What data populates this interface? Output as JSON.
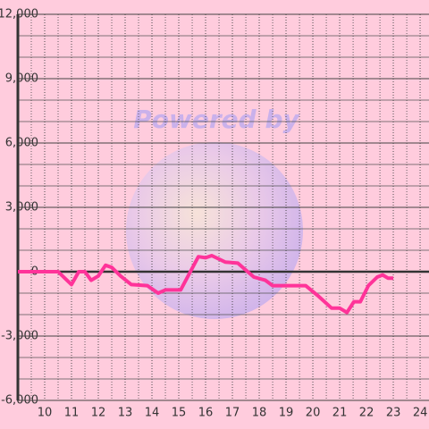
{
  "chart_data": {
    "type": "line",
    "watermark": "Powered by",
    "x": [
      9,
      10.5,
      10.83,
      11,
      11.27,
      11.5,
      11.73,
      12,
      12.27,
      12.5,
      12.83,
      13.23,
      13.83,
      14.23,
      14.5,
      15.07,
      15.73,
      16,
      16.23,
      16.73,
      17.2,
      17.8,
      18.23,
      18.5,
      19.73,
      20.17,
      20.7,
      21,
      21.27,
      21.53,
      21.77,
      22.07,
      22.4,
      22.6,
      22.8,
      23
    ],
    "series": [
      {
        "color": "#ff3399",
        "values": [
          0,
          0,
          -400,
          -600,
          0,
          0,
          -400,
          -200,
          300,
          200,
          -200,
          -600,
          -650,
          -1000,
          -850,
          -850,
          700,
          650,
          750,
          450,
          400,
          -250,
          -400,
          -650,
          -650,
          -1100,
          -1700,
          -1700,
          -1900,
          -1400,
          -1400,
          -650,
          -250,
          -150,
          -300,
          -300
        ]
      }
    ],
    "xlim": [
      9,
      24.33
    ],
    "xticks": [
      10,
      11,
      12,
      13,
      14,
      15,
      16,
      17,
      18,
      19,
      20,
      21,
      22,
      23,
      24
    ],
    "ylim": [
      -6000,
      12000
    ],
    "yticks": [
      {
        "value": 12000,
        "label": "12,000"
      },
      {
        "value": 9000,
        "label": "9,000"
      },
      {
        "value": 6000,
        "label": "6,000"
      },
      {
        "value": 3000,
        "label": "3,000"
      },
      0,
      {
        "value": -3000,
        "label": "-3,000"
      },
      {
        "value": -6000,
        "label": "-6,000"
      }
    ],
    "grid": true
  }
}
